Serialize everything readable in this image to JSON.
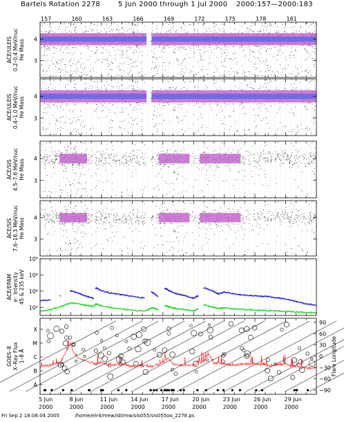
{
  "header": {
    "rotation": "Bartels Rotation 2278",
    "dates": "5 Jun 2000 through 1 Jul 2000",
    "doy": "2000:157—2000:183"
  },
  "footer": {
    "timestamp": "Fri Sep  2 18:08:04 2005",
    "path": "/home/elr4/mew/idl/mw/sis055/sis055oo_2278.ps"
  },
  "colors": {
    "scatter": "#000000",
    "core_blue": "#6a6ae6",
    "core_magenta": "#c86ad2",
    "grid_yellow": "#d9d06a",
    "grid_blue": "#9a9ae0",
    "electrons_high": "#1f1fd6",
    "electrons_low": "#1fd61f",
    "xray": "#ff0000"
  },
  "chart_data": {
    "type": "scatter",
    "doy_ticks": [
      "157",
      "160",
      "163",
      "166",
      "169",
      "172",
      "175",
      "178",
      "181"
    ],
    "date_ticks": [
      {
        "day": "5 Jun",
        "year": "2000"
      },
      {
        "day": "8 Jun",
        "year": "2000"
      },
      {
        "day": "11 Jun",
        "year": "2000"
      },
      {
        "day": "14 Jun",
        "year": "2000"
      },
      {
        "day": "17 Jun",
        "year": "2000"
      },
      {
        "day": "20 Jun",
        "year": "2000"
      },
      {
        "day": "23 Jun",
        "year": "2000"
      },
      {
        "day": "26 Jun",
        "year": "2000"
      },
      {
        "day": "29 Jun",
        "year": "2000"
      }
    ],
    "xlim": [
      157,
      184
    ],
    "panels": [
      {
        "id": "uleis1",
        "ylabel": [
          "ACE/ULEIS",
          "0.2–0.4 MeV/nuc",
          "He Mass"
        ],
        "ylim": [
          2.2,
          4.8
        ],
        "yticks": [
          "3",
          "4"
        ],
        "band_center": 4.0,
        "gaps": [
          [
            167.3,
            167.8
          ]
        ]
      },
      {
        "id": "uleis2",
        "ylabel": [
          "ACE/ULEIS",
          "0.4–1.0 MeV/nuc",
          "He Mass"
        ],
        "ylim": [
          2.2,
          4.8
        ],
        "yticks": [
          "3",
          "4"
        ],
        "band_center": 4.0,
        "gaps": [
          [
            167.3,
            167.8
          ]
        ]
      },
      {
        "id": "sis1",
        "ylabel": [
          "ACE/SIS",
          "4.5–7.6 MeV/nuc",
          "He Mass"
        ],
        "ylim": [
          2.2,
          4.8
        ],
        "yticks": [
          "3",
          "4"
        ],
        "band_center": 4.0,
        "gaps": [
          [
            162.1,
            162.3
          ],
          [
            167.3,
            167.8
          ]
        ]
      },
      {
        "id": "sis2",
        "ylabel": [
          "ACE/SIS",
          "7.6–16.3 MeV/nuc",
          "He Mass"
        ],
        "ylim": [
          2.2,
          4.8
        ],
        "yticks": [
          "3",
          "4"
        ],
        "band_center": 4.0,
        "gaps": [
          [
            162.1,
            162.3
          ],
          [
            167.3,
            167.8
          ]
        ]
      },
      {
        "id": "epam",
        "ylabel": [
          "ACE/EPAM",
          "e⁻ Intensity",
          "45 & 235 keV"
        ],
        "yscale": "log",
        "ylim": [
          10,
          100000000
        ],
        "yticks": [
          "10⁸",
          "10⁶",
          "10⁴",
          "10²"
        ],
        "series": [
          {
            "color": "#1f1fd6",
            "x": [
              157,
              158,
              159,
              160,
              160.8,
              161.5,
              162.2,
              162.4,
              163,
              164,
              165,
              166,
              167.2,
              167.9,
              168.5,
              169.2,
              169.6,
              170.2,
              171,
              171.9,
              172.4,
              173,
              173.8,
              174.4,
              175,
              176,
              177,
              178,
              179,
              180,
              181,
              182,
              183,
              184
            ],
            "y": [
              700,
              1000,
              3500,
              12000,
              6000,
              2500,
              1500,
              30000,
              12000,
              6000,
              4000,
              2500,
              1500,
              9000,
              2500,
              25000,
              12000,
              6000,
              3500,
              1500,
              3000,
              30000,
              12000,
              5000,
              9000,
              5000,
              3500,
              3000,
              2500,
              1800,
              1200,
              600,
              300,
              200
            ]
          },
          {
            "color": "#1fd61f",
            "x": [
              157,
              158,
              159,
              160,
              160.8,
              161.5,
              162.2,
              162.4,
              163,
              164,
              165,
              166,
              167.2,
              167.9,
              168.5,
              169.2,
              169.6,
              170.2,
              171,
              171.9,
              172.4,
              173,
              173.8,
              174.4,
              175,
              176,
              177,
              178,
              179,
              180,
              181,
              182,
              183,
              184
            ],
            "y": [
              40,
              60,
              150,
              400,
              300,
              200,
              150,
              300,
              160,
              100,
              70,
              50,
              40,
              100,
              60,
              200,
              120,
              80,
              60,
              40,
              70,
              250,
              120,
              80,
              100,
              70,
              60,
              50,
              45,
              40,
              35,
              30,
              25,
              25
            ]
          }
        ]
      },
      {
        "id": "goes",
        "ylabel": [
          "GOES–8",
          "X–Ray Flux",
          "1–8 Å"
        ],
        "ylabels_left": [
          "X",
          "M",
          "C",
          "B",
          "A"
        ],
        "ylabels_right": [
          "90",
          "60",
          "30",
          "0",
          "−30",
          "−60",
          "−90"
        ],
        "ylabel_right": "Flare Longitude",
        "series": [
          {
            "name": "X-ray flux",
            "color": "#ff0000",
            "x": [
              157,
              158,
              159,
              159.4,
              160,
              160.2,
              160.8,
              161.5,
              162.5,
              163,
              164,
              165,
              166,
              167,
              168,
              169,
              169.5,
              170,
              171,
              172,
              173,
              173.5,
              174,
              175,
              176,
              177,
              178,
              179,
              180,
              181,
              182,
              183,
              184
            ],
            "class": [
              1.3,
              1.4,
              1.6,
              2.2,
              3.0,
              2.4,
              1.9,
              1.7,
              1.5,
              1.6,
              1.4,
              1.5,
              1.3,
              1.4,
              1.3,
              1.6,
              1.9,
              1.5,
              1.4,
              1.4,
              1.7,
              2.2,
              1.6,
              1.5,
              1.4,
              1.5,
              1.5,
              1.4,
              1.4,
              1.5,
              1.3,
              1.2,
              1.2
            ]
          }
        ]
      }
    ]
  }
}
